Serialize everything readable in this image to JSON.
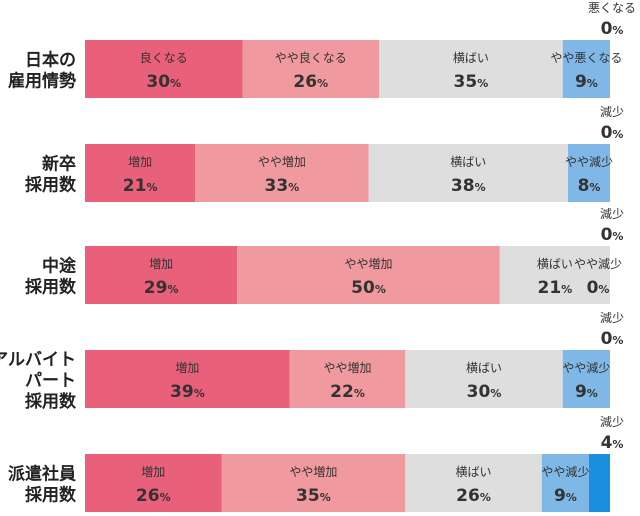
{
  "chart_data": {
    "type": "bar",
    "orientation": "horizontal-stacked-100",
    "percent_sign": "%",
    "rows": [
      {
        "label": [
          "日本の",
          "雇用情勢"
        ],
        "segments": [
          {
            "name": "良くなる",
            "value": 30,
            "color": "#e8607a"
          },
          {
            "name": "やや良くなる",
            "value": 26,
            "color": "#f0999e"
          },
          {
            "name": "横ばい",
            "value": 35,
            "color": "#dedede"
          },
          {
            "name": "やや悪くなる",
            "value": 9,
            "color": "#7fb8e6"
          },
          {
            "name": "悪くなる",
            "value": 0,
            "color": "#1a8fe0"
          }
        ]
      },
      {
        "label": [
          "新卒",
          "採用数"
        ],
        "segments": [
          {
            "name": "増加",
            "value": 21,
            "color": "#e8607a"
          },
          {
            "name": "やや増加",
            "value": 33,
            "color": "#f0999e"
          },
          {
            "name": "横ばい",
            "value": 38,
            "color": "#dedede"
          },
          {
            "name": "やや減少",
            "value": 8,
            "color": "#7fb8e6"
          },
          {
            "name": "減少",
            "value": 0,
            "color": "#1a8fe0"
          }
        ]
      },
      {
        "label": [
          "中途",
          "採用数"
        ],
        "segments": [
          {
            "name": "増加",
            "value": 29,
            "color": "#e8607a"
          },
          {
            "name": "やや増加",
            "value": 50,
            "color": "#f0999e"
          },
          {
            "name": "横ばい",
            "value": 21,
            "color": "#dedede"
          },
          {
            "name": "やや減少",
            "value": 0,
            "color": "#7fb8e6"
          },
          {
            "name": "減少",
            "value": 0,
            "color": "#1a8fe0"
          }
        ]
      },
      {
        "label": [
          "アルバイト",
          "パート",
          "採用数"
        ],
        "segments": [
          {
            "name": "増加",
            "value": 39,
            "color": "#e8607a"
          },
          {
            "name": "やや増加",
            "value": 22,
            "color": "#f0999e"
          },
          {
            "name": "横ばい",
            "value": 30,
            "color": "#dedede"
          },
          {
            "name": "やや減少",
            "value": 9,
            "color": "#7fb8e6"
          },
          {
            "name": "減少",
            "value": 0,
            "color": "#1a8fe0"
          }
        ]
      },
      {
        "label": [
          "派遣社員",
          "採用数"
        ],
        "segments": [
          {
            "name": "増加",
            "value": 26,
            "color": "#e8607a"
          },
          {
            "name": "やや増加",
            "value": 35,
            "color": "#f0999e"
          },
          {
            "name": "横ばい",
            "value": 26,
            "color": "#dedede"
          },
          {
            "name": "やや減少",
            "value": 9,
            "color": "#7fb8e6"
          },
          {
            "name": "減少",
            "value": 4,
            "color": "#1a8fe0"
          }
        ]
      }
    ]
  }
}
